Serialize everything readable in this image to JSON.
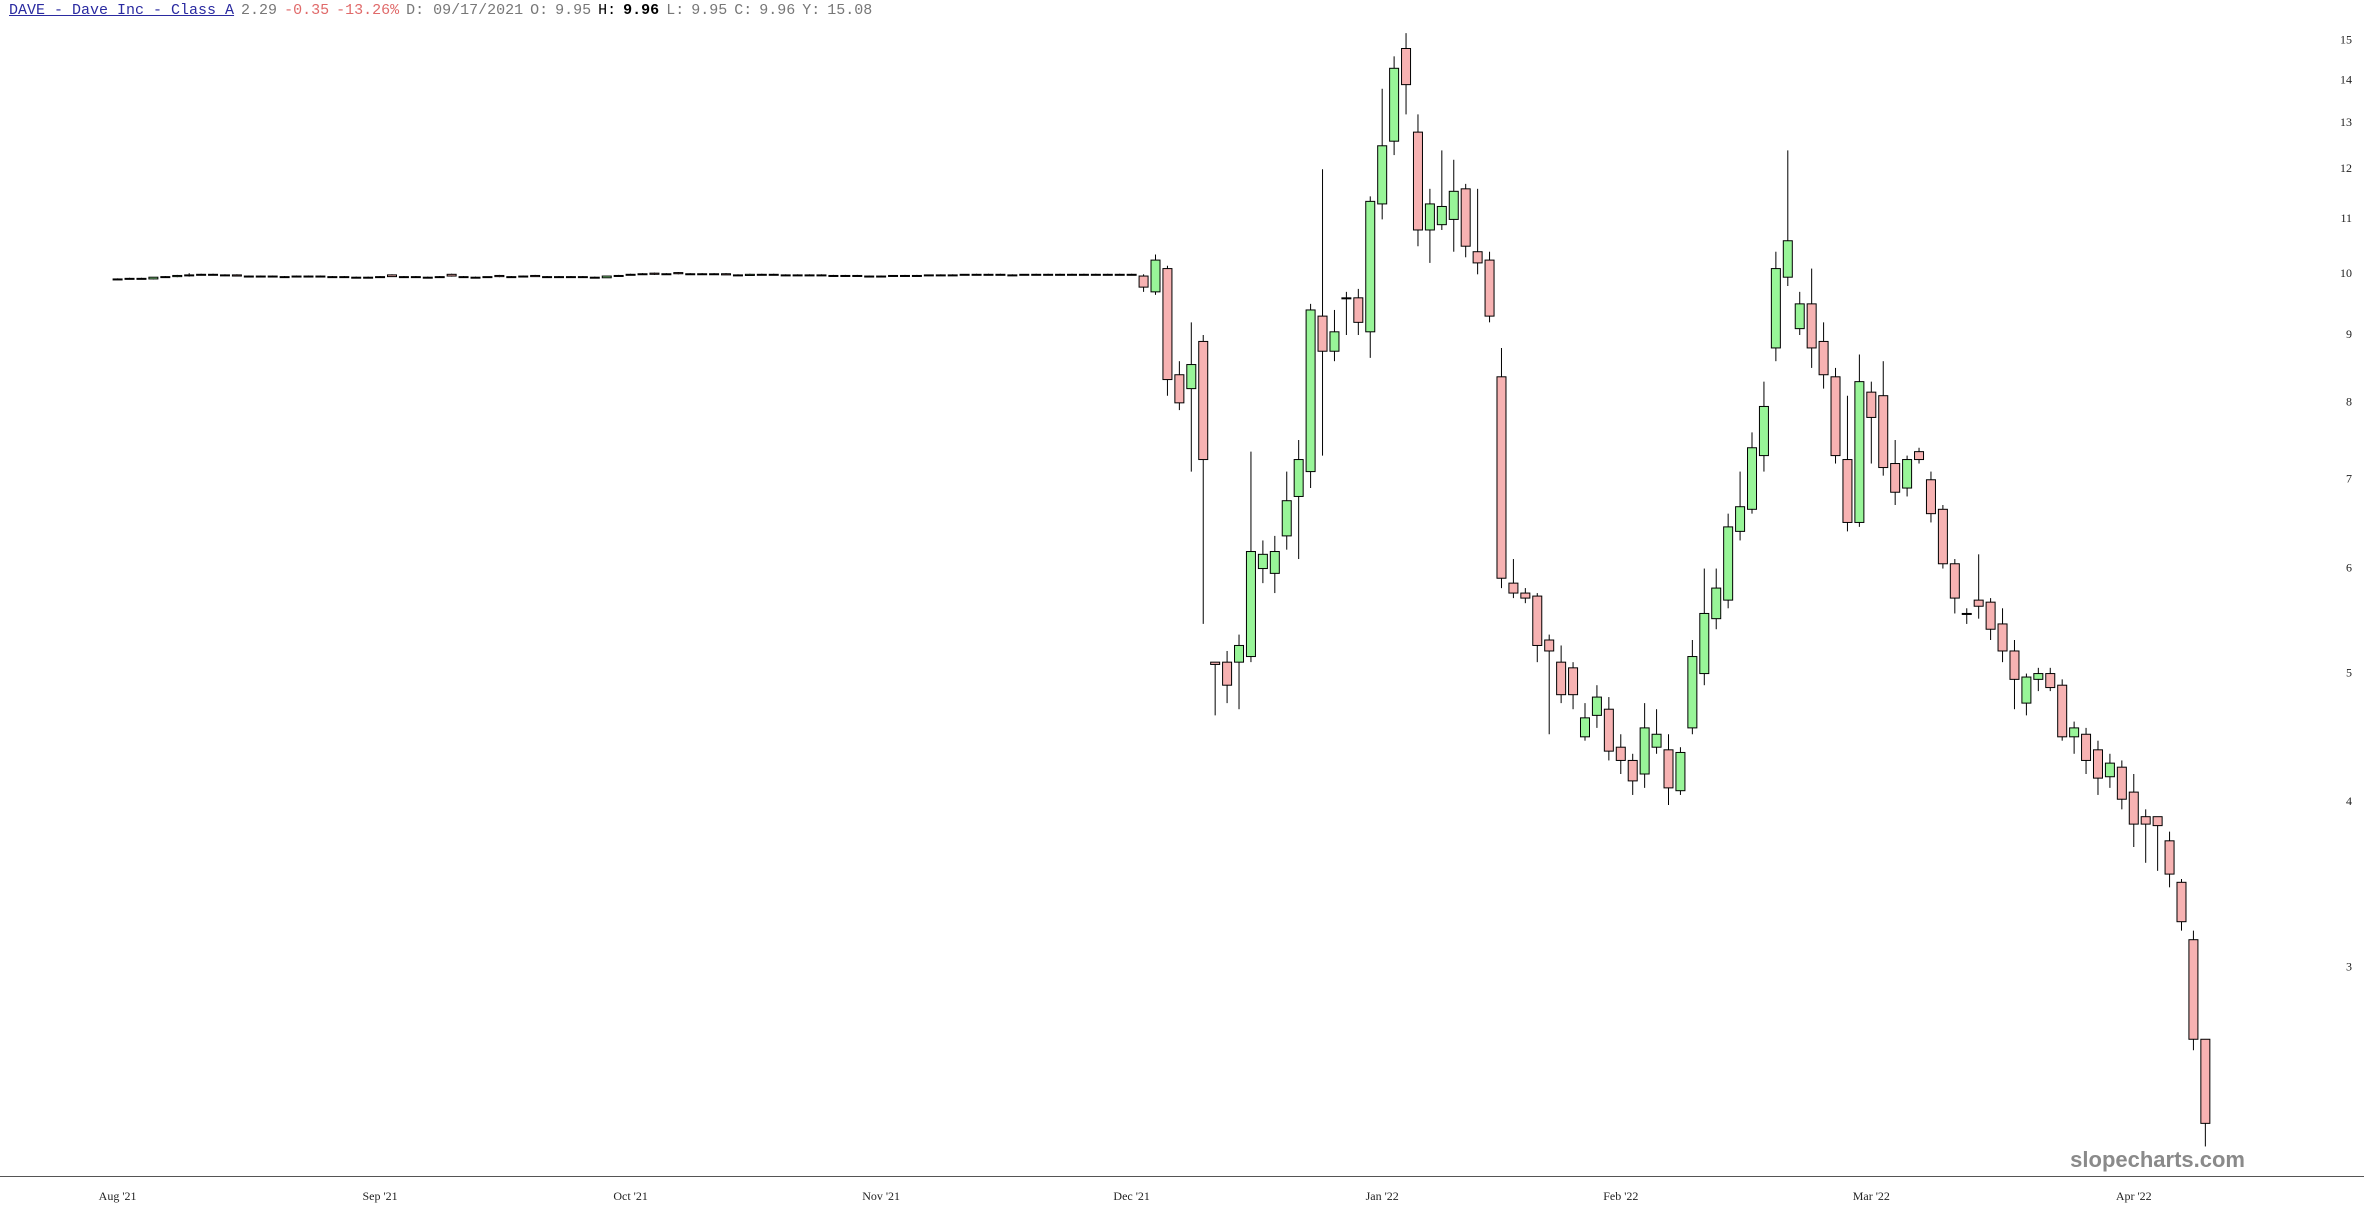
{
  "chart_data": {
    "type": "candlestick",
    "header": {
      "symbol": "DAVE - Dave Inc - Class A",
      "last": 2.29,
      "change": -0.35,
      "change_pct": "-13.26%",
      "date": "D: 09/17/2021",
      "open_label": "O:",
      "open": 9.95,
      "high_label": "H:",
      "high": 9.96,
      "low_label": "L:",
      "low": 9.95,
      "close_label": "C:",
      "close": 9.96,
      "prev_label": "Y:",
      "prev": 15.08
    },
    "watermark": "slopecharts.com",
    "log_scale": true,
    "up_color": "#98f598",
    "down_color": "#f7b2b2",
    "outline_color": "#000000",
    "ylim": [
      2.09,
      16.1
    ],
    "yticks": [
      3,
      4,
      5,
      6,
      7,
      8,
      9,
      10,
      11,
      12,
      13,
      14,
      15
    ],
    "categories": [
      "Aug '21",
      null,
      null,
      null,
      null,
      null,
      null,
      null,
      null,
      null,
      null,
      null,
      null,
      null,
      null,
      null,
      null,
      null,
      null,
      null,
      null,
      null,
      "Sep '21",
      null,
      null,
      null,
      null,
      null,
      null,
      null,
      null,
      null,
      null,
      null,
      null,
      null,
      null,
      null,
      null,
      null,
      null,
      null,
      null,
      "Oct '21",
      null,
      null,
      null,
      null,
      null,
      null,
      null,
      null,
      null,
      null,
      null,
      null,
      null,
      null,
      null,
      null,
      null,
      null,
      null,
      null,
      "Nov '21",
      null,
      null,
      null,
      null,
      null,
      null,
      null,
      null,
      null,
      null,
      null,
      null,
      null,
      null,
      null,
      null,
      null,
      null,
      null,
      null,
      "Dec '21",
      null,
      null,
      null,
      null,
      null,
      null,
      null,
      null,
      null,
      null,
      null,
      null,
      null,
      null,
      null,
      null,
      null,
      null,
      null,
      null,
      "Jan '22",
      null,
      null,
      null,
      null,
      null,
      null,
      null,
      null,
      null,
      null,
      null,
      null,
      null,
      null,
      null,
      null,
      null,
      null,
      null,
      "Feb '22",
      null,
      null,
      null,
      null,
      null,
      null,
      null,
      null,
      null,
      null,
      null,
      null,
      null,
      null,
      null,
      null,
      null,
      null,
      null,
      null,
      "Mar '22",
      null,
      null,
      null,
      null,
      null,
      null,
      null,
      null,
      null,
      null,
      null,
      null,
      null,
      null,
      null,
      null,
      null,
      null,
      null,
      null,
      null,
      "Apr '22",
      null,
      null,
      null,
      null,
      null,
      null
    ],
    "ohlc": [
      [
        9.92,
        9.93,
        9.91,
        9.92
      ],
      [
        9.92,
        9.94,
        9.91,
        9.93
      ],
      [
        9.93,
        9.94,
        9.92,
        9.92
      ],
      [
        9.92,
        9.95,
        9.91,
        9.95
      ],
      [
        9.95,
        9.97,
        9.94,
        9.96
      ],
      [
        9.96,
        9.99,
        9.95,
        9.98
      ],
      [
        9.98,
        10.02,
        9.96,
        9.99
      ],
      [
        9.99,
        10.01,
        9.98,
        10.0
      ],
      [
        10.0,
        10.01,
        9.98,
        9.99
      ],
      [
        9.98,
        10.0,
        9.97,
        9.99
      ],
      [
        9.99,
        10.0,
        9.97,
        9.97
      ],
      [
        9.97,
        9.98,
        9.95,
        9.96
      ],
      [
        9.96,
        9.98,
        9.95,
        9.97
      ],
      [
        9.97,
        9.98,
        9.96,
        9.96
      ],
      [
        9.96,
        9.97,
        9.95,
        9.96
      ],
      [
        9.96,
        9.98,
        9.95,
        9.97
      ],
      [
        9.97,
        9.98,
        9.96,
        9.97
      ],
      [
        9.97,
        9.98,
        9.96,
        9.96
      ],
      [
        9.96,
        9.97,
        9.95,
        9.96
      ],
      [
        9.96,
        9.97,
        9.95,
        9.95
      ],
      [
        9.95,
        9.96,
        9.94,
        9.95
      ],
      [
        9.95,
        9.96,
        9.94,
        9.95
      ],
      [
        9.95,
        9.97,
        9.94,
        9.96
      ],
      [
        9.99,
        10.0,
        9.96,
        9.96
      ],
      [
        9.96,
        9.97,
        9.95,
        9.96
      ],
      [
        9.96,
        9.97,
        9.94,
        9.95
      ],
      [
        9.95,
        9.96,
        9.94,
        9.95
      ],
      [
        9.95,
        9.97,
        9.94,
        9.96
      ],
      [
        10.0,
        10.01,
        9.96,
        9.97
      ],
      [
        9.96,
        9.97,
        9.94,
        9.95
      ],
      [
        9.95,
        9.96,
        9.94,
        9.95
      ],
      [
        9.95,
        9.96,
        9.94,
        9.96
      ],
      [
        9.98,
        9.99,
        9.95,
        9.96
      ],
      [
        9.96,
        9.97,
        9.95,
        9.96
      ],
      [
        9.96,
        9.98,
        9.95,
        9.97
      ],
      [
        9.98,
        9.99,
        9.96,
        9.96
      ],
      [
        9.96,
        9.97,
        9.95,
        9.96
      ],
      [
        9.96,
        9.97,
        9.95,
        9.96
      ],
      [
        9.96,
        9.97,
        9.95,
        9.96
      ],
      [
        9.96,
        9.97,
        9.95,
        9.95
      ],
      [
        9.95,
        9.96,
        9.94,
        9.95
      ],
      [
        9.94,
        9.97,
        9.94,
        9.97
      ],
      [
        9.97,
        9.99,
        9.96,
        9.98
      ],
      [
        9.99,
        10.01,
        9.98,
        10.0
      ],
      [
        10.0,
        10.02,
        9.99,
        10.01
      ],
      [
        10.02,
        10.03,
        9.99,
        10.0
      ],
      [
        10.0,
        10.02,
        9.99,
        10.01
      ],
      [
        10.03,
        10.04,
        10.0,
        10.01
      ],
      [
        10.01,
        10.02,
        10.0,
        10.01
      ],
      [
        10.01,
        10.02,
        10.0,
        10.0
      ],
      [
        10.0,
        10.02,
        9.99,
        10.01
      ],
      [
        10.01,
        10.02,
        9.99,
        9.99
      ],
      [
        9.99,
        10.0,
        9.98,
        9.99
      ],
      [
        9.98,
        10.01,
        9.98,
        10.0
      ],
      [
        10.0,
        10.01,
        9.98,
        10.0
      ],
      [
        10.0,
        10.01,
        9.98,
        9.99
      ],
      [
        9.98,
        10.0,
        9.97,
        9.99
      ],
      [
        9.99,
        10.0,
        9.98,
        9.99
      ],
      [
        9.98,
        10.0,
        9.97,
        9.99
      ],
      [
        9.99,
        10.0,
        9.98,
        9.98
      ],
      [
        9.98,
        9.99,
        9.97,
        9.98
      ],
      [
        9.97,
        9.99,
        9.96,
        9.98
      ],
      [
        9.98,
        9.99,
        9.96,
        9.97
      ],
      [
        9.97,
        9.98,
        9.96,
        9.97
      ],
      [
        9.97,
        9.98,
        9.96,
        9.97
      ],
      [
        9.97,
        9.98,
        9.96,
        9.98
      ],
      [
        9.98,
        9.99,
        9.97,
        9.98
      ],
      [
        9.98,
        9.99,
        9.97,
        9.98
      ],
      [
        9.98,
        9.99,
        9.97,
        9.99
      ],
      [
        9.99,
        10.0,
        9.98,
        9.99
      ],
      [
        9.99,
        10.0,
        9.98,
        9.99
      ],
      [
        9.99,
        10.0,
        9.98,
        10.0
      ],
      [
        10.0,
        10.01,
        9.99,
        10.0
      ],
      [
        10.0,
        10.01,
        9.99,
        10.0
      ],
      [
        10.0,
        10.01,
        9.99,
        9.99
      ],
      [
        9.99,
        10.0,
        9.98,
        9.99
      ],
      [
        9.99,
        10.0,
        9.98,
        10.0
      ],
      [
        10.0,
        10.01,
        9.99,
        10.0
      ],
      [
        10.0,
        10.01,
        9.99,
        10.0
      ],
      [
        10.0,
        10.01,
        9.99,
        10.0
      ],
      [
        10.0,
        10.01,
        9.99,
        10.0
      ],
      [
        10.0,
        10.01,
        9.99,
        10.0
      ],
      [
        10.0,
        10.01,
        9.99,
        10.0
      ],
      [
        10.0,
        10.01,
        9.99,
        10.0
      ],
      [
        10.0,
        10.01,
        9.99,
        10.0
      ],
      [
        10.0,
        10.01,
        9.99,
        10.0
      ],
      [
        9.97,
        10.0,
        9.7,
        9.78
      ],
      [
        9.7,
        10.35,
        9.65,
        10.25
      ],
      [
        10.1,
        10.15,
        8.1,
        8.33
      ],
      [
        8.4,
        8.6,
        7.9,
        8.0
      ],
      [
        8.2,
        9.2,
        7.1,
        8.55
      ],
      [
        8.9,
        9.0,
        5.45,
        7.25
      ],
      [
        5.1,
        5.1,
        4.65,
        5.08
      ],
      [
        5.1,
        5.2,
        4.75,
        4.9
      ],
      [
        5.1,
        5.35,
        4.7,
        5.25
      ],
      [
        5.15,
        7.35,
        5.1,
        6.18
      ],
      [
        6.0,
        6.3,
        5.85,
        6.15
      ],
      [
        5.95,
        6.35,
        5.75,
        6.18
      ],
      [
        6.35,
        7.1,
        6.2,
        6.75
      ],
      [
        6.8,
        7.5,
        6.1,
        7.25
      ],
      [
        7.1,
        9.5,
        6.9,
        9.4
      ],
      [
        9.3,
        12.0,
        7.3,
        8.75
      ],
      [
        8.75,
        9.4,
        8.6,
        9.05
      ],
      [
        9.6,
        9.7,
        9.0,
        9.6
      ],
      [
        9.6,
        9.75,
        9.0,
        9.2
      ],
      [
        9.05,
        11.45,
        8.65,
        11.35
      ],
      [
        11.3,
        13.8,
        11.0,
        12.5
      ],
      [
        12.6,
        14.6,
        12.3,
        14.3
      ],
      [
        14.8,
        15.2,
        13.2,
        13.9
      ],
      [
        12.8,
        13.2,
        10.5,
        10.8
      ],
      [
        10.8,
        11.6,
        10.2,
        11.3
      ],
      [
        10.9,
        12.4,
        10.8,
        11.25
      ],
      [
        11.0,
        12.2,
        10.4,
        11.55
      ],
      [
        11.6,
        11.7,
        10.3,
        10.5
      ],
      [
        10.4,
        11.6,
        10.0,
        10.2
      ],
      [
        10.25,
        10.4,
        9.2,
        9.3
      ],
      [
        8.37,
        8.8,
        5.8,
        5.9
      ],
      [
        5.85,
        6.1,
        5.7,
        5.75
      ],
      [
        5.75,
        5.8,
        5.65,
        5.7
      ],
      [
        5.72,
        5.75,
        5.1,
        5.25
      ],
      [
        5.3,
        5.35,
        4.5,
        5.2
      ],
      [
        5.1,
        5.25,
        4.75,
        4.82
      ],
      [
        5.05,
        5.1,
        4.7,
        4.82
      ],
      [
        4.48,
        4.75,
        4.45,
        4.63
      ],
      [
        4.65,
        4.9,
        4.55,
        4.8
      ],
      [
        4.7,
        4.8,
        4.3,
        4.37
      ],
      [
        4.4,
        4.5,
        4.2,
        4.3
      ],
      [
        4.3,
        4.35,
        4.05,
        4.15
      ],
      [
        4.2,
        4.75,
        4.1,
        4.55
      ],
      [
        4.4,
        4.7,
        4.35,
        4.5
      ],
      [
        4.38,
        4.5,
        3.98,
        4.1
      ],
      [
        4.08,
        4.4,
        4.05,
        4.36
      ],
      [
        4.55,
        5.3,
        4.5,
        5.15
      ],
      [
        5.0,
        6.0,
        4.9,
        5.55
      ],
      [
        5.5,
        6.0,
        5.4,
        5.8
      ],
      [
        5.68,
        6.6,
        5.6,
        6.45
      ],
      [
        6.4,
        7.1,
        6.3,
        6.68
      ],
      [
        6.65,
        7.6,
        6.6,
        7.4
      ],
      [
        7.3,
        8.3,
        7.1,
        7.95
      ],
      [
        8.8,
        10.4,
        8.6,
        10.1
      ],
      [
        9.95,
        12.4,
        9.8,
        10.6
      ],
      [
        9.1,
        9.7,
        9.0,
        9.5
      ],
      [
        9.5,
        10.1,
        8.5,
        8.8
      ],
      [
        8.9,
        9.2,
        8.2,
        8.4
      ],
      [
        8.37,
        8.5,
        7.2,
        7.3
      ],
      [
        7.25,
        8.1,
        6.4,
        6.5
      ],
      [
        6.5,
        8.7,
        6.45,
        8.3
      ],
      [
        8.15,
        8.3,
        7.2,
        7.8
      ],
      [
        8.1,
        8.6,
        7.05,
        7.15
      ],
      [
        7.2,
        7.5,
        6.7,
        6.85
      ],
      [
        6.9,
        7.3,
        6.8,
        7.25
      ],
      [
        7.35,
        7.4,
        7.2,
        7.25
      ],
      [
        7.0,
        7.1,
        6.5,
        6.6
      ],
      [
        6.65,
        6.7,
        6.0,
        6.05
      ],
      [
        6.05,
        6.1,
        5.55,
        5.7
      ],
      [
        5.55,
        5.6,
        5.45,
        5.55
      ],
      [
        5.68,
        6.15,
        5.5,
        5.62
      ],
      [
        5.66,
        5.7,
        5.3,
        5.4
      ],
      [
        5.45,
        5.6,
        5.1,
        5.2
      ],
      [
        5.2,
        5.3,
        4.7,
        4.95
      ],
      [
        4.75,
        5.0,
        4.65,
        4.97
      ],
      [
        4.95,
        5.05,
        4.85,
        5.0
      ],
      [
        5.0,
        5.05,
        4.85,
        4.88
      ],
      [
        4.9,
        4.95,
        4.45,
        4.48
      ],
      [
        4.48,
        4.6,
        4.35,
        4.55
      ],
      [
        4.5,
        4.55,
        4.2,
        4.3
      ],
      [
        4.38,
        4.45,
        4.05,
        4.17
      ],
      [
        4.18,
        4.35,
        4.1,
        4.28
      ],
      [
        4.25,
        4.3,
        3.95,
        4.02
      ],
      [
        4.07,
        4.2,
        3.7,
        3.85
      ],
      [
        3.9,
        3.95,
        3.6,
        3.85
      ],
      [
        3.9,
        3.9,
        3.55,
        3.84
      ],
      [
        3.74,
        3.8,
        3.45,
        3.53
      ],
      [
        3.48,
        3.5,
        3.2,
        3.25
      ],
      [
        3.15,
        3.2,
        2.6,
        2.65
      ],
      [
        2.65,
        2.65,
        2.2,
        2.29
      ]
    ]
  }
}
